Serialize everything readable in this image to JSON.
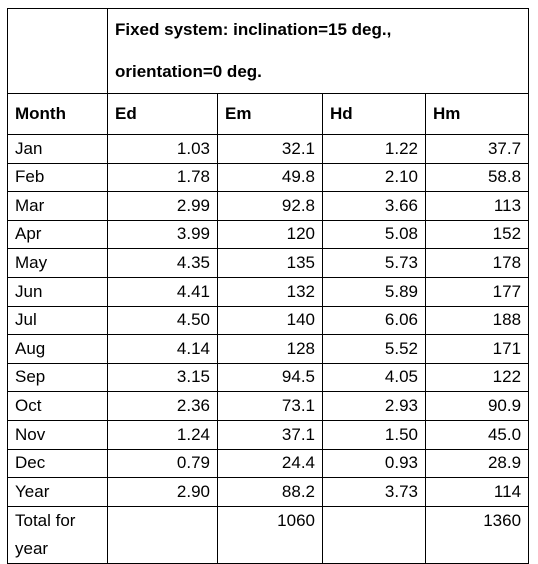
{
  "title": {
    "line1": "Fixed system: inclination=15 deg.,",
    "line2": "orientation=0 deg."
  },
  "columns": [
    "Month",
    "Ed",
    "Em",
    "Hd",
    "Hm"
  ],
  "rows": [
    {
      "month": "Jan",
      "ed": "1.03",
      "em": "32.1",
      "hd": "1.22",
      "hm": "37.7"
    },
    {
      "month": "Feb",
      "ed": "1.78",
      "em": "49.8",
      "hd": "2.10",
      "hm": "58.8"
    },
    {
      "month": "Mar",
      "ed": "2.99",
      "em": "92.8",
      "hd": "3.66",
      "hm": "113"
    },
    {
      "month": "Apr",
      "ed": "3.99",
      "em": "120",
      "hd": "5.08",
      "hm": "152"
    },
    {
      "month": "May",
      "ed": "4.35",
      "em": "135",
      "hd": "5.73",
      "hm": "178"
    },
    {
      "month": "Jun",
      "ed": "4.41",
      "em": "132",
      "hd": "5.89",
      "hm": "177"
    },
    {
      "month": "Jul",
      "ed": "4.50",
      "em": "140",
      "hd": "6.06",
      "hm": "188"
    },
    {
      "month": "Aug",
      "ed": "4.14",
      "em": "128",
      "hd": "5.52",
      "hm": "171"
    },
    {
      "month": "Sep",
      "ed": "3.15",
      "em": "94.5",
      "hd": "4.05",
      "hm": "122"
    },
    {
      "month": "Oct",
      "ed": "2.36",
      "em": "73.1",
      "hd": "2.93",
      "hm": "90.9"
    },
    {
      "month": "Nov",
      "ed": "1.24",
      "em": "37.1",
      "hd": "1.50",
      "hm": "45.0"
    },
    {
      "month": "Dec",
      "ed": "0.79",
      "em": "24.4",
      "hd": "0.93",
      "hm": "28.9"
    },
    {
      "month": "Year",
      "ed": "2.90",
      "em": "88.2",
      "hd": "3.73",
      "hm": "114"
    }
  ],
  "total": {
    "label_line1": "Total for",
    "label_line2": "year",
    "ed": "",
    "em": "1060",
    "hd": "",
    "hm": "1360"
  }
}
